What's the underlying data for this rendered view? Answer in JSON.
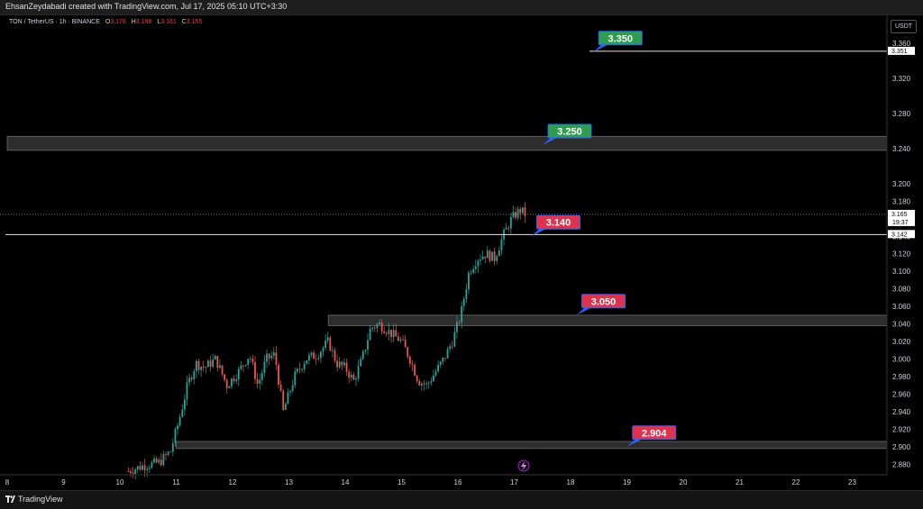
{
  "header": {
    "attribution": "EhsanZeydabadi created with TradingView.com, Jul 17, 2025 05:10 UTC+3:30"
  },
  "legend": {
    "symbol": "TON / TetherUS · 1h · BINANCE",
    "o_label": "O",
    "o": "3.176",
    "h_label": "H",
    "h": "3.198",
    "l_label": "L",
    "l": "3.161",
    "c_label": "C",
    "c": "3.165"
  },
  "currency_button": "USDT",
  "footer": {
    "brand": "TradingView"
  },
  "colors": {
    "up": "#26a69a",
    "down": "#ef5350",
    "green_label": "#2e9d4f",
    "red_label": "#e0324d",
    "label_border": "#2962ff"
  },
  "chart_data": {
    "type": "candlestick",
    "x": {
      "tick_labels": [
        "8",
        "9",
        "10",
        "11",
        "12",
        "13",
        "14",
        "15",
        "16",
        "17",
        "18",
        "19",
        "20",
        "21",
        "22",
        "23"
      ],
      "unit": "day (July 2025)"
    },
    "y": {
      "tick_labels": [
        "3.360",
        "3.320",
        "3.280",
        "3.240",
        "3.200",
        "3.180",
        "3.160",
        "3.140",
        "3.120",
        "3.100",
        "3.080",
        "3.060",
        "3.040",
        "3.020",
        "3.000",
        "2.980",
        "2.960",
        "2.940",
        "2.920",
        "2.900",
        "2.880"
      ],
      "range": [
        2.868,
        3.392
      ]
    },
    "last_price": {
      "value": "3.165",
      "countdown": "19:37"
    },
    "horizontal_lines": [
      {
        "value": "3.351"
      },
      {
        "value": "3.142"
      }
    ],
    "zones": [
      {
        "from": 3.238,
        "to": 3.254,
        "start_day": 8.0
      },
      {
        "from": 3.038,
        "to": 3.05,
        "start_day": 13.7
      },
      {
        "from": 2.898,
        "to": 2.906,
        "start_day": 11.0
      }
    ],
    "annotations": [
      {
        "text": "3.350",
        "color": "green",
        "day": 18.5,
        "price": 3.366,
        "pointer_price": 3.35
      },
      {
        "text": "3.250",
        "color": "green",
        "day": 17.6,
        "price": 3.26,
        "pointer_price": 3.244
      },
      {
        "text": "3.140",
        "color": "red",
        "day": 17.4,
        "price": 3.156,
        "pointer_price": 3.14
      },
      {
        "text": "3.050",
        "color": "red",
        "day": 18.2,
        "price": 3.066,
        "pointer_price": 3.05
      },
      {
        "text": "2.904",
        "color": "red",
        "day": 19.1,
        "price": 2.916,
        "pointer_price": 2.9
      }
    ],
    "price_path": [
      [
        10.15,
        2.872
      ],
      [
        10.4,
        2.878
      ],
      [
        10.7,
        2.882
      ],
      [
        10.9,
        2.895
      ],
      [
        11.05,
        2.93
      ],
      [
        11.2,
        2.97
      ],
      [
        11.35,
        2.995
      ],
      [
        11.5,
        2.99
      ],
      [
        11.7,
        3.0
      ],
      [
        11.9,
        2.97
      ],
      [
        12.1,
        2.985
      ],
      [
        12.3,
        3.005
      ],
      [
        12.45,
        2.97
      ],
      [
        12.6,
        3.0
      ],
      [
        12.75,
        3.005
      ],
      [
        12.9,
        2.94
      ],
      [
        13.1,
        2.98
      ],
      [
        13.3,
        3.0
      ],
      [
        13.5,
        3.005
      ],
      [
        13.7,
        3.02
      ],
      [
        13.85,
        2.995
      ],
      [
        14.0,
        2.99
      ],
      [
        14.15,
        2.975
      ],
      [
        14.3,
        3.0
      ],
      [
        14.45,
        3.035
      ],
      [
        14.6,
        3.04
      ],
      [
        14.8,
        3.03
      ],
      [
        15.0,
        3.02
      ],
      [
        15.15,
        3.0
      ],
      [
        15.3,
        2.975
      ],
      [
        15.45,
        2.97
      ],
      [
        15.6,
        2.985
      ],
      [
        15.75,
        3.0
      ],
      [
        15.9,
        3.02
      ],
      [
        16.05,
        3.05
      ],
      [
        16.2,
        3.1
      ],
      [
        16.35,
        3.115
      ],
      [
        16.5,
        3.12
      ],
      [
        16.65,
        3.115
      ],
      [
        16.8,
        3.14
      ],
      [
        16.95,
        3.16
      ],
      [
        17.1,
        3.17
      ],
      [
        17.2,
        3.165
      ]
    ]
  }
}
